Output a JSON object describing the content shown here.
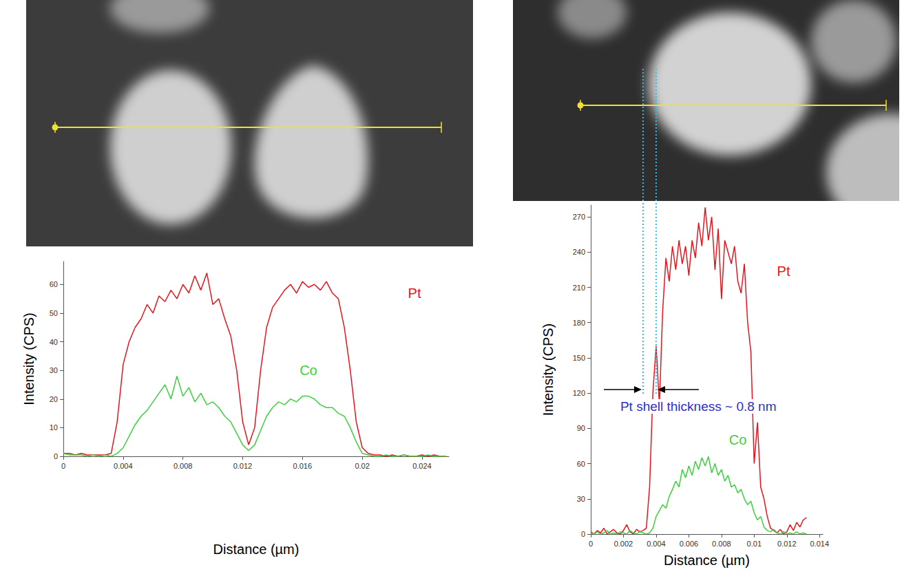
{
  "chart_data": [
    {
      "type": "line",
      "x_label": "Distance (µm)",
      "y_label": "Intensity (CPS)",
      "x": [
        0,
        0.0004,
        0.0008,
        0.0012,
        0.0016,
        0.002,
        0.0024,
        0.0028,
        0.0032,
        0.0036,
        0.004,
        0.0044,
        0.0048,
        0.0052,
        0.0056,
        0.006,
        0.0064,
        0.0068,
        0.0072,
        0.0076,
        0.008,
        0.0084,
        0.0088,
        0.0092,
        0.0096,
        0.01,
        0.0104,
        0.0108,
        0.0112,
        0.0116,
        0.012,
        0.0124,
        0.0128,
        0.0132,
        0.0136,
        0.014,
        0.0144,
        0.0148,
        0.0152,
        0.0156,
        0.016,
        0.0164,
        0.0168,
        0.0172,
        0.0176,
        0.018,
        0.0184,
        0.0188,
        0.0192,
        0.0196,
        0.02,
        0.0204,
        0.0208,
        0.0212,
        0.0216,
        0.022,
        0.0224,
        0.0228,
        0.0232,
        0.0236,
        0.024,
        0.0244,
        0.0248,
        0.0252,
        0.0256
      ],
      "series": [
        {
          "name": "Pt",
          "color": "#e8141c",
          "values": [
            1,
            1,
            0.5,
            1,
            0.5,
            0.5,
            0.5,
            0.5,
            1,
            12,
            32,
            40,
            45,
            48,
            53,
            50,
            56,
            54,
            58,
            55,
            60,
            57,
            63,
            58,
            64,
            53,
            55,
            48,
            42,
            30,
            12,
            4,
            10,
            30,
            45,
            52,
            55,
            58,
            60,
            57,
            61,
            59,
            60,
            58,
            61,
            57,
            55,
            45,
            30,
            12,
            3,
            1,
            0.5,
            0.5,
            0,
            0.5,
            0,
            0.5,
            0,
            0,
            0.5,
            0,
            0.5,
            0,
            0
          ]
        },
        {
          "name": "Co",
          "color": "#3ad13a",
          "values": [
            1,
            0.5,
            0.5,
            0.5,
            0,
            0.5,
            0,
            0.5,
            0,
            1,
            3,
            7,
            11,
            14,
            16,
            19,
            22,
            25,
            20,
            28,
            21,
            24,
            19,
            22,
            18,
            19,
            17,
            14,
            12,
            8,
            4,
            2,
            4,
            9,
            14,
            17,
            19,
            18,
            20,
            19,
            21,
            21,
            20,
            18,
            17,
            17,
            15,
            14,
            10,
            5,
            1,
            0.5,
            0,
            0,
            0.5,
            0,
            0,
            0.5,
            0,
            0,
            0,
            0.5,
            0,
            0,
            0
          ]
        }
      ],
      "xlim": [
        0,
        0.0258
      ],
      "xticks": [
        0,
        0.004,
        0.008,
        0.012,
        0.016,
        0.02,
        0.024
      ],
      "ylim": [
        0,
        68
      ],
      "yticks": [
        0,
        10,
        20,
        30,
        40,
        50,
        60
      ],
      "grid": false,
      "annotations": [
        {
          "text": "Pt",
          "x": 0.0235,
          "y": 57,
          "color": "#e8141c"
        },
        {
          "text": "Co",
          "x": 0.0164,
          "y": 30,
          "color": "#3ad13a"
        }
      ]
    },
    {
      "type": "line",
      "x_label": "Distance (µm)",
      "y_label": "Intensity (CPS)",
      "x": [
        0,
        0.0002,
        0.0004,
        0.0006,
        0.0008,
        0.001,
        0.0012,
        0.0014,
        0.0016,
        0.0018,
        0.002,
        0.0022,
        0.0024,
        0.0026,
        0.0028,
        0.003,
        0.0032,
        0.0034,
        0.0036,
        0.0038,
        0.004,
        0.0042,
        0.0044,
        0.0046,
        0.0048,
        0.005,
        0.0052,
        0.0054,
        0.0056,
        0.0058,
        0.006,
        0.0062,
        0.0064,
        0.0066,
        0.0068,
        0.007,
        0.0072,
        0.0074,
        0.0076,
        0.0078,
        0.008,
        0.0082,
        0.0084,
        0.0086,
        0.0088,
        0.009,
        0.0092,
        0.0094,
        0.0096,
        0.0098,
        0.01,
        0.0102,
        0.0104,
        0.0106,
        0.0108,
        0.011,
        0.0112,
        0.0114,
        0.0116,
        0.0118,
        0.012,
        0.0122,
        0.0124,
        0.0126,
        0.0128,
        0.013,
        0.0132
      ],
      "series": [
        {
          "name": "Pt",
          "color": "#e8141c",
          "values": [
            2,
            0,
            3,
            1,
            5,
            0,
            2,
            4,
            1,
            0,
            3,
            8,
            2,
            0,
            4,
            2,
            3,
            5,
            40,
            120,
            160,
            110,
            190,
            235,
            215,
            245,
            225,
            250,
            230,
            245,
            220,
            250,
            235,
            265,
            245,
            278,
            250,
            270,
            225,
            260,
            200,
            250,
            240,
            230,
            245,
            215,
            205,
            230,
            180,
            155,
            60,
            95,
            40,
            30,
            15,
            5,
            3,
            1,
            4,
            0,
            2,
            8,
            3,
            10,
            6,
            12,
            14
          ]
        },
        {
          "name": "Co",
          "color": "#3ad13a",
          "values": [
            1,
            0,
            2,
            0,
            1,
            3,
            0,
            1,
            0,
            2,
            1,
            0,
            3,
            1,
            0,
            2,
            1,
            0,
            1,
            5,
            15,
            20,
            25,
            22,
            32,
            38,
            45,
            40,
            55,
            48,
            58,
            50,
            62,
            55,
            65,
            58,
            66,
            52,
            60,
            50,
            55,
            45,
            50,
            40,
            42,
            35,
            38,
            30,
            25,
            28,
            18,
            12,
            15,
            6,
            3,
            2,
            4,
            1,
            0,
            2,
            0,
            1,
            0,
            2,
            0,
            1,
            0
          ]
        }
      ],
      "xlim": [
        0,
        0.0142
      ],
      "xticks": [
        0,
        0.002,
        0.004,
        0.006,
        0.008,
        0.01,
        0.012,
        0.014
      ],
      "ylim": [
        0,
        280
      ],
      "yticks": [
        0,
        30,
        60,
        90,
        120,
        150,
        180,
        210,
        240,
        270
      ],
      "grid": false,
      "annotations": [
        {
          "text": "Pt",
          "x": 0.0118,
          "y": 224,
          "color": "#e8141c"
        },
        {
          "text": "Co",
          "x": 0.009,
          "y": 80,
          "color": "#3ad13a"
        }
      ],
      "shell": {
        "bounds": [
          0.0032,
          0.004
        ],
        "label": "Pt shell thickness ~ 0.8 nm",
        "color": "#2f2fc8",
        "line_color": "#33bbee",
        "line_style": "dotted"
      }
    }
  ]
}
